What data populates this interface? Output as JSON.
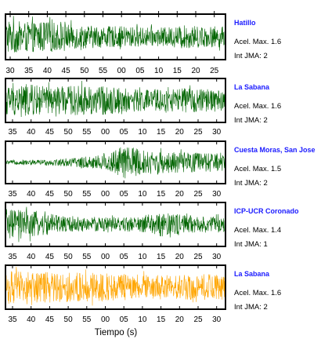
{
  "chart_data": {
    "type": "line",
    "xlabel": "Tiempo (s)",
    "ylabel": "",
    "grid": false,
    "panels": [
      {
        "station": "Hatillo",
        "acel_max": "Acel. Max. 1.6",
        "int_jma": "Int JMA: 2",
        "color": "#006400",
        "tick_labels": [
          "30",
          "35",
          "40",
          "45",
          "50",
          "55",
          "00",
          "05",
          "10",
          "15",
          "20",
          "25"
        ],
        "x_range_s": [
          28.5,
          88.5
        ],
        "amplitude_envelope": [
          0.8,
          0.7,
          0.75,
          0.6,
          0.55,
          0.5,
          0.5,
          0.45,
          0.45,
          0.55,
          0.5,
          0.5
        ]
      },
      {
        "station": "La Sabana",
        "acel_max": "Acel. Max. 1.6",
        "int_jma": "Int JMA: 2",
        "color": "#006400",
        "tick_labels": [
          "35",
          "40",
          "45",
          "50",
          "55",
          "00",
          "05",
          "10",
          "15",
          "20",
          "25",
          "30"
        ],
        "x_range_s": [
          31.5,
          92.0
        ],
        "amplitude_envelope": [
          0.75,
          0.8,
          0.7,
          0.7,
          0.75,
          0.7,
          0.6,
          0.55,
          0.55,
          0.6,
          0.55,
          0.55
        ]
      },
      {
        "station": "Cuesta Moras, San Jose",
        "acel_max": "Acel. Max. 1.5",
        "int_jma": "Int JMA: 2",
        "color": "#006400",
        "tick_labels": [
          "35",
          "40",
          "45",
          "50",
          "55",
          "00",
          "05",
          "10",
          "15",
          "20",
          "25",
          "30"
        ],
        "x_range_s": [
          31.5,
          92.0
        ],
        "amplitude_envelope": [
          0.1,
          0.12,
          0.15,
          0.2,
          0.3,
          0.45,
          0.9,
          0.6,
          0.55,
          0.5,
          0.5,
          0.45
        ]
      },
      {
        "station": "ICP-UCR Coronado",
        "acel_max": "Acel. Max. 1.4",
        "int_jma": "Int JMA: 1",
        "color": "#006400",
        "tick_labels": [
          "35",
          "40",
          "45",
          "50",
          "55",
          "00",
          "05",
          "10",
          "15",
          "20",
          "25",
          "30"
        ],
        "x_range_s": [
          31.5,
          92.0
        ],
        "amplitude_envelope": [
          0.75,
          0.7,
          0.55,
          0.4,
          0.35,
          0.35,
          0.35,
          0.4,
          0.65,
          0.45,
          0.4,
          0.4
        ]
      },
      {
        "station": "La Sabana",
        "acel_max": "Acel. Max. 1.6",
        "int_jma": "Int JMA: 2",
        "color": "#ffa500",
        "tick_labels": [
          "35",
          "40",
          "45",
          "50",
          "55",
          "00",
          "05",
          "10",
          "15",
          "20",
          "25",
          "30"
        ],
        "x_range_s": [
          31.5,
          92.0
        ],
        "amplitude_envelope": [
          0.8,
          0.8,
          0.75,
          0.75,
          0.7,
          0.7,
          0.65,
          0.6,
          0.6,
          0.6,
          0.65,
          0.6
        ]
      }
    ]
  }
}
